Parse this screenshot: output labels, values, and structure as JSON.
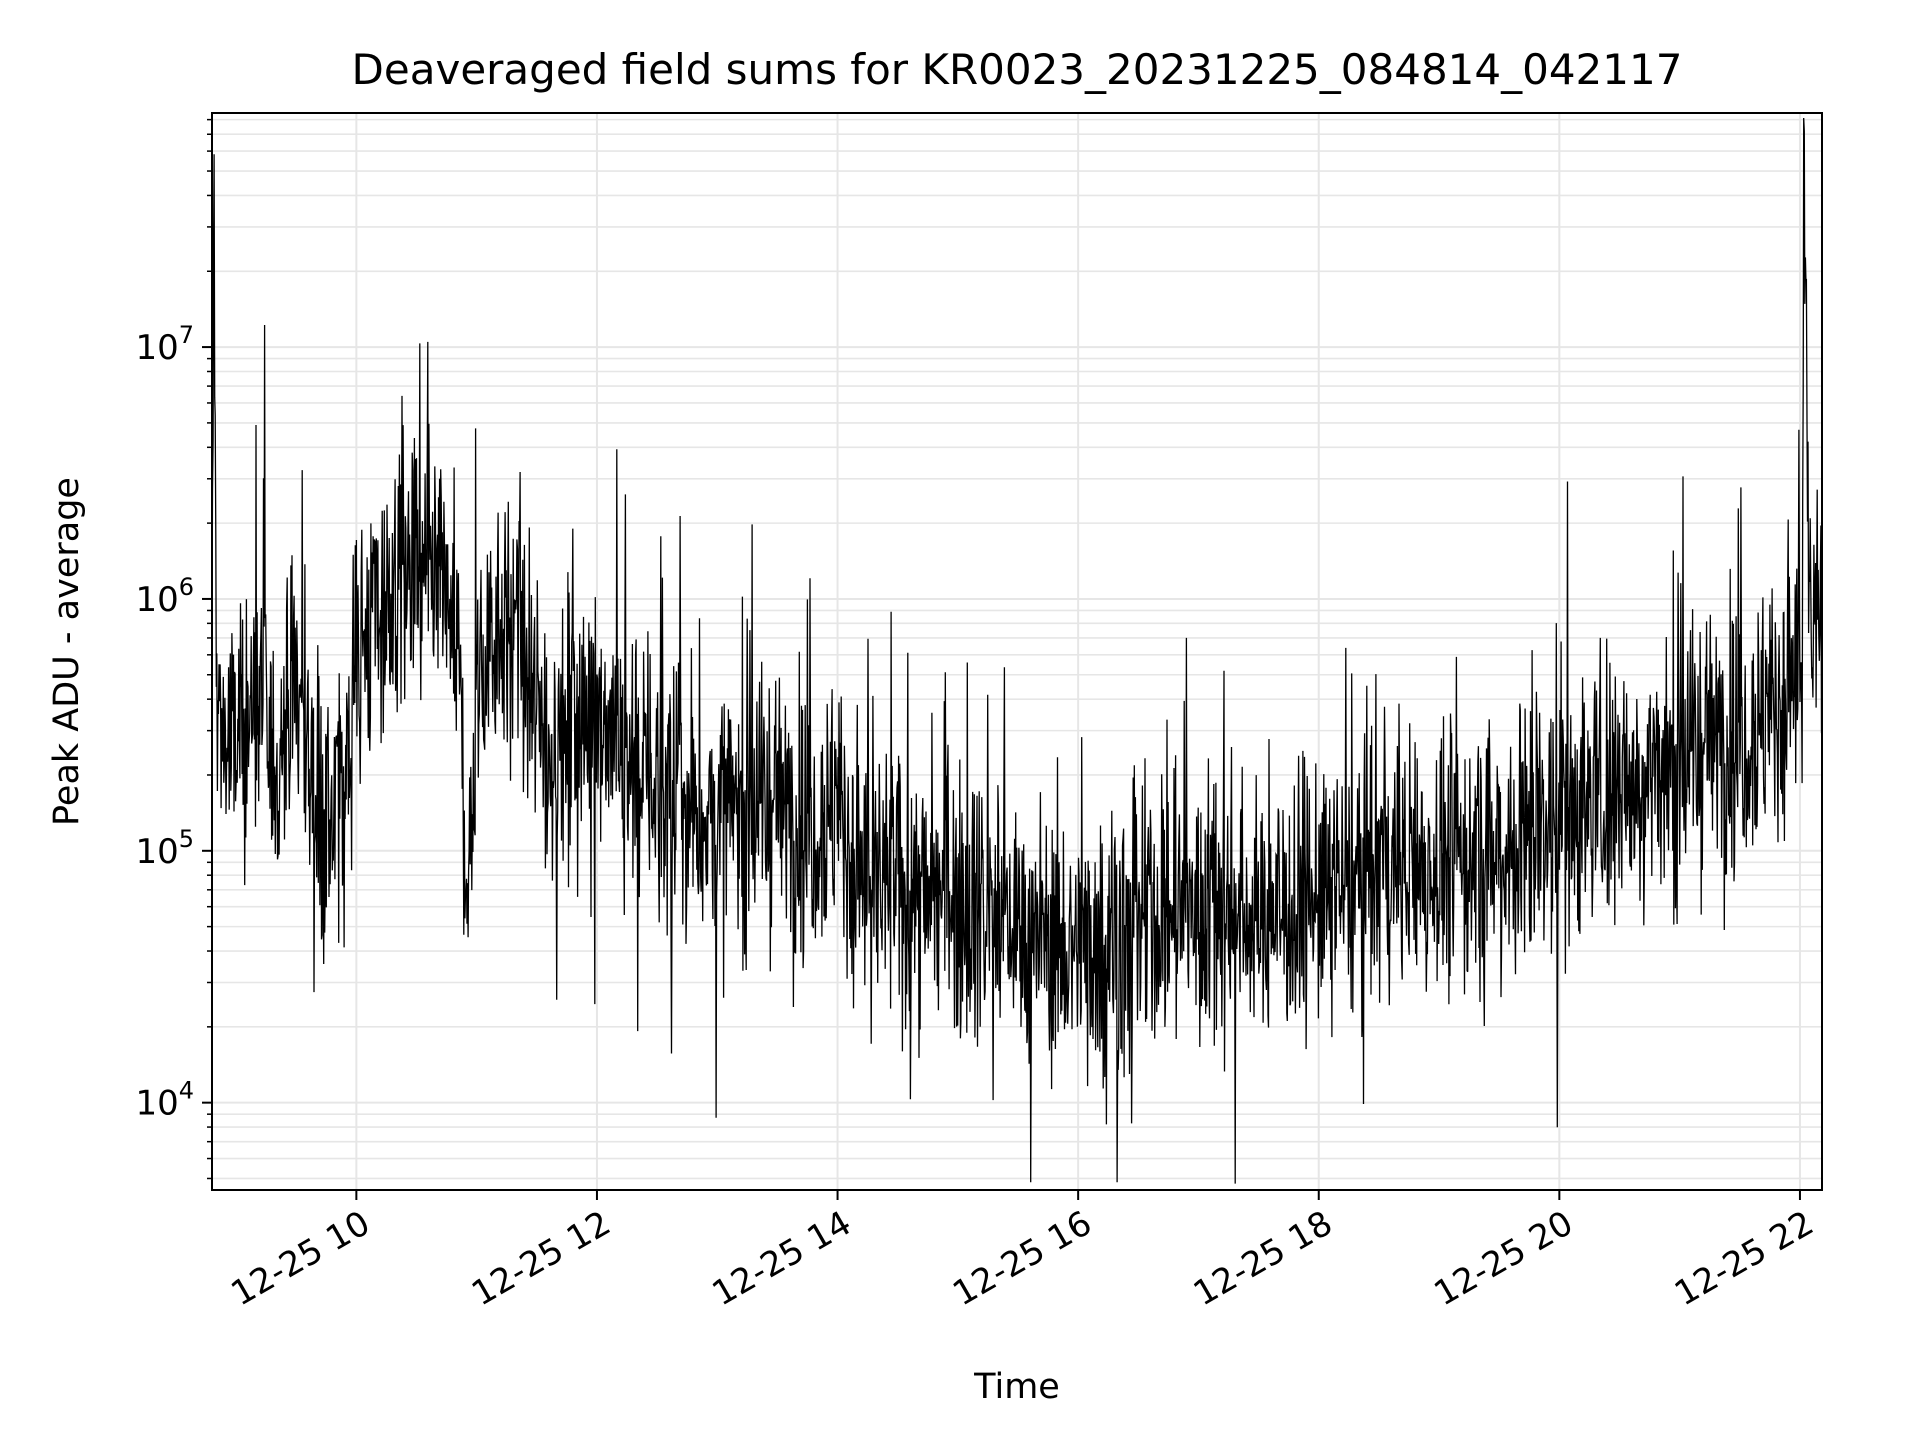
{
  "chart_data": {
    "type": "line",
    "title": "Deaveraged field sums for KR0023_20231225_084814_042117",
    "xlabel": "Time",
    "ylabel": "Peak ADU - average",
    "x_scale": "time",
    "y_scale": "log",
    "xlim": [
      "2023-12-25 08:48",
      "2023-12-25 22:11"
    ],
    "ylim": [
      4500,
      85000000
    ],
    "grid": true,
    "legend": false,
    "line_color": "#000000",
    "grid_color": "#e6e6e6",
    "x_ticks": [
      {
        "value": "2023-12-25 10:00",
        "label": "12-25 10"
      },
      {
        "value": "2023-12-25 12:00",
        "label": "12-25 12"
      },
      {
        "value": "2023-12-25 14:00",
        "label": "12-25 14"
      },
      {
        "value": "2023-12-25 16:00",
        "label": "12-25 16"
      },
      {
        "value": "2023-12-25 18:00",
        "label": "12-25 18"
      },
      {
        "value": "2023-12-25 20:00",
        "label": "12-25 20"
      },
      {
        "value": "2023-12-25 22:00",
        "label": "12-25 22"
      }
    ],
    "y_ticks": [
      {
        "value": 10000,
        "base": "10",
        "exp": "4"
      },
      {
        "value": 100000,
        "base": "10",
        "exp": "5"
      },
      {
        "value": 1000000,
        "base": "10",
        "exp": "6"
      },
      {
        "value": 10000000,
        "base": "10",
        "exp": "7"
      }
    ],
    "series": [
      {
        "x": [
          "2023-12-25 08:48",
          "2023-12-25 08:49",
          "2023-12-25 08:50",
          "2023-12-25 08:52",
          "2023-12-25 09:00",
          "2023-12-25 09:10",
          "2023-12-25 09:20",
          "2023-12-25 09:30",
          "2023-12-25 09:40",
          "2023-12-25 09:50",
          "2023-12-25 10:00",
          "2023-12-25 10:10",
          "2023-12-25 10:20",
          "2023-12-25 10:30",
          "2023-12-25 10:40",
          "2023-12-25 10:50",
          "2023-12-25 10:56",
          "2023-12-25 11:00",
          "2023-12-25 11:10",
          "2023-12-25 11:20",
          "2023-12-25 11:30",
          "2023-12-25 11:40",
          "2023-12-25 11:50",
          "2023-12-25 12:00",
          "2023-12-25 12:15",
          "2023-12-25 12:30",
          "2023-12-25 12:45",
          "2023-12-25 13:00",
          "2023-12-25 13:15",
          "2023-12-25 13:30",
          "2023-12-25 13:45",
          "2023-12-25 14:00",
          "2023-12-25 14:10",
          "2023-12-25 14:30",
          "2023-12-25 14:45",
          "2023-12-25 15:00",
          "2023-12-25 15:15",
          "2023-12-25 15:30",
          "2023-12-25 15:45",
          "2023-12-25 16:00",
          "2023-12-25 16:15",
          "2023-12-25 16:30",
          "2023-12-25 16:45",
          "2023-12-25 17:00",
          "2023-12-25 17:15",
          "2023-12-25 17:30",
          "2023-12-25 17:45",
          "2023-12-25 18:00",
          "2023-12-25 18:15",
          "2023-12-25 18:30",
          "2023-12-25 18:45",
          "2023-12-25 19:00",
          "2023-12-25 19:15",
          "2023-12-25 19:30",
          "2023-12-25 19:45",
          "2023-12-25 20:00",
          "2023-12-25 20:15",
          "2023-12-25 20:30",
          "2023-12-25 20:45",
          "2023-12-25 21:00",
          "2023-12-25 21:15",
          "2023-12-25 21:30",
          "2023-12-25 21:45",
          "2023-12-25 21:55",
          "2023-12-25 22:01",
          "2023-12-25 22:02",
          "2023-12-25 22:05",
          "2023-12-25 22:11"
        ],
        "y": [
          400000,
          50000000,
          600000,
          300000,
          250000,
          400000,
          200000,
          500000,
          150000,
          120000,
          600000,
          900000,
          1000000,
          1200000,
          1000000,
          800000,
          60000,
          400000,
          900000,
          700000,
          300000,
          250000,
          300000,
          400000,
          250000,
          180000,
          150000,
          130000,
          150000,
          160000,
          130000,
          150000,
          80000,
          70000,
          65000,
          70000,
          60000,
          50000,
          45000,
          40000,
          45000,
          50000,
          55000,
          60000,
          60000,
          55000,
          60000,
          65000,
          70000,
          80000,
          85000,
          90000,
          95000,
          100000,
          120000,
          140000,
          160000,
          180000,
          200000,
          230000,
          280000,
          300000,
          350000,
          450000,
          550000,
          45000000,
          700000,
          900000
        ]
      }
    ]
  }
}
